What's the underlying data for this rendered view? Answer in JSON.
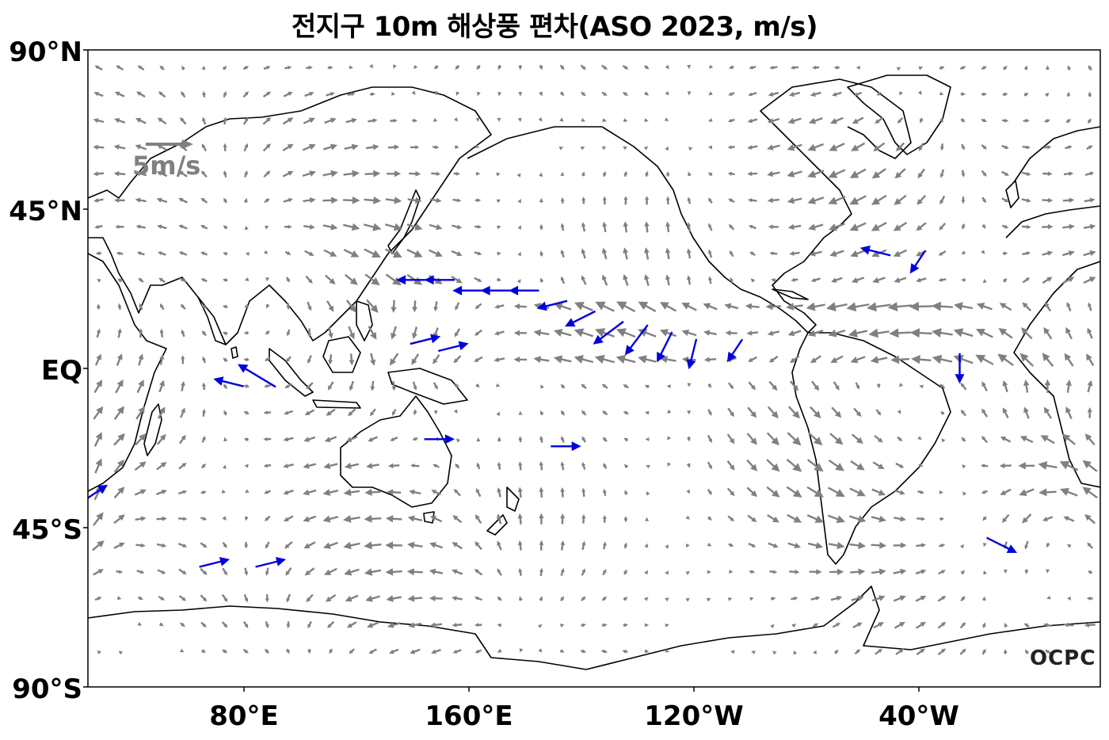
{
  "title": "전지구 10m 해상풍 편차(ASO 2023, m/s)",
  "axes": {
    "y_ticks": [
      "90°N",
      "45°N",
      "EQ",
      "45°S",
      "90°S"
    ],
    "x_ticks": [
      "80°E",
      "160°E",
      "120°W",
      "40°W"
    ]
  },
  "scale_arrow": {
    "label": "5m/s",
    "magnitude": 5
  },
  "logo": "OCPC",
  "colors": {
    "normal_arrow": "#808080",
    "significant_arrow": "#0000dd",
    "coastline": "#000000",
    "frame": "#000000"
  },
  "chart_data": {
    "type": "vector-field",
    "projection": "equirectangular, centered 160°W, lon 25°E–25°E (360°), lat 90°S–90°N",
    "grid_spacing_deg": 7.5,
    "units": "m/s",
    "significant_vectors_blue": [
      {
        "lon": 140,
        "lat": 25,
        "u": -4,
        "v": 0
      },
      {
        "lon": 150,
        "lat": 25,
        "u": -4,
        "v": 0
      },
      {
        "lon": 160,
        "lat": 22,
        "u": -4,
        "v": 0
      },
      {
        "lon": 170,
        "lat": 22,
        "u": -4,
        "v": 0
      },
      {
        "lon": 180,
        "lat": 22,
        "u": -4,
        "v": 0
      },
      {
        "lon": -170,
        "lat": 18,
        "u": -4,
        "v": -1
      },
      {
        "lon": -160,
        "lat": 14,
        "u": -4,
        "v": -2
      },
      {
        "lon": -150,
        "lat": 10,
        "u": -4,
        "v": -3
      },
      {
        "lon": -140,
        "lat": 8,
        "u": -3,
        "v": -4
      },
      {
        "lon": -130,
        "lat": 6,
        "u": -2,
        "v": -4
      },
      {
        "lon": -120,
        "lat": 4,
        "u": -1,
        "v": -4
      },
      {
        "lon": -105,
        "lat": 5,
        "u": -2,
        "v": -3
      },
      {
        "lon": 145,
        "lat": 8,
        "u": 4,
        "v": 1
      },
      {
        "lon": 155,
        "lat": 6,
        "u": 4,
        "v": 1
      },
      {
        "lon": 85,
        "lat": -2,
        "u": -5,
        "v": 3
      },
      {
        "lon": 75,
        "lat": -4,
        "u": -4,
        "v": 1
      },
      {
        "lon": 150,
        "lat": -20,
        "u": 4,
        "v": 0
      },
      {
        "lon": -165,
        "lat": -22,
        "u": 4,
        "v": 0
      },
      {
        "lon": 70,
        "lat": -55,
        "u": 4,
        "v": 1
      },
      {
        "lon": 90,
        "lat": -55,
        "u": 4,
        "v": 1
      },
      {
        "lon": -55,
        "lat": 33,
        "u": -4,
        "v": 1
      },
      {
        "lon": -40,
        "lat": 30,
        "u": -2,
        "v": -3
      },
      {
        "lon": -10,
        "lat": -50,
        "u": 4,
        "v": -2
      },
      {
        "lon": -25,
        "lat": 0,
        "u": 0,
        "v": -4
      },
      {
        "lon": 28,
        "lat": -35,
        "u": 3,
        "v": 2
      }
    ]
  }
}
